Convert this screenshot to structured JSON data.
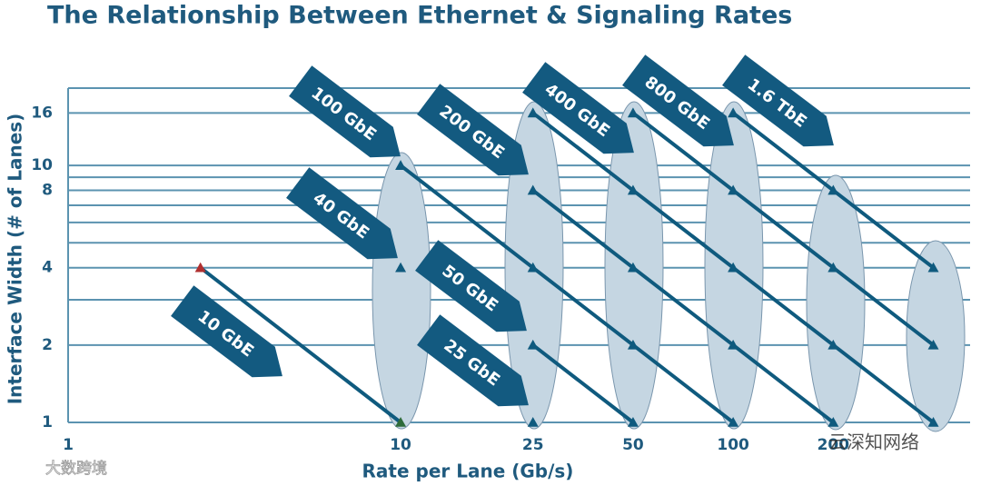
{
  "chart_data": {
    "type": "line",
    "title": "The Relationship Between Ethernet & Signaling Rates",
    "x_label": "Rate per Lane (Gb/s)",
    "y_label": "Interface Width (# of Lanes)",
    "xscale": "log",
    "yscale": "log",
    "xlim": [
      1,
      500
    ],
    "ylim": [
      1,
      20
    ],
    "xticks": [
      1,
      10,
      25,
      50,
      100,
      200
    ],
    "yticks": [
      1,
      2,
      4,
      8,
      10,
      16
    ],
    "y_minor_grid": [
      3,
      5,
      6,
      7,
      9,
      20
    ],
    "grid": true,
    "series": [
      {
        "name": "10 GbE",
        "color": "#0f5a7e",
        "marker_colors": [
          "#b03030",
          "#2e6b3a"
        ],
        "x": [
          2.5,
          10
        ],
        "values": [
          4,
          1
        ]
      },
      {
        "name": "100 GbE",
        "color": "#0f5a7e",
        "x": [
          10,
          25,
          50,
          100
        ],
        "values": [
          10,
          4,
          2,
          1
        ]
      },
      {
        "name": "40 GbE",
        "color": "#0f5a7e",
        "x": [
          10
        ],
        "values": [
          4
        ]
      },
      {
        "name": "50 GbE",
        "color": "#0f5a7e",
        "x": [
          25,
          50
        ],
        "values": [
          2,
          1
        ]
      },
      {
        "name": "25 GbE",
        "color": "#0f5a7e",
        "x": [
          25
        ],
        "values": [
          1
        ]
      },
      {
        "name": "200 GbE",
        "color": "#0f5a7e",
        "x": [
          25,
          50,
          100,
          200
        ],
        "values": [
          8,
          4,
          2,
          1
        ]
      },
      {
        "name": "400 GbE",
        "color": "#0f5a7e",
        "x": [
          25,
          50,
          100,
          200,
          400
        ],
        "values": [
          16,
          8,
          4,
          2,
          1
        ]
      },
      {
        "name": "800 GbE",
        "color": "#0f5a7e",
        "x": [
          50,
          100,
          200,
          400
        ],
        "values": [
          16,
          8,
          4,
          2
        ]
      },
      {
        "name": "1.6 TbE",
        "color": "#0f5a7e",
        "x": [
          100,
          200,
          400
        ],
        "values": [
          16,
          8,
          4
        ]
      }
    ],
    "watermarks": [
      "大数跨境",
      "云深知网络"
    ]
  }
}
